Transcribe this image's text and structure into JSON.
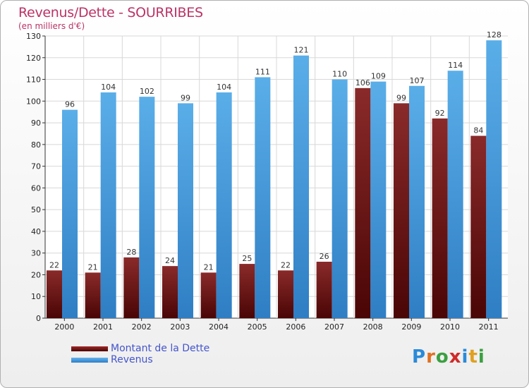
{
  "chart_data": {
    "type": "bar",
    "title": "Revenus/Dette - SOURRIBES",
    "subtitle": "(en milliers d'€)",
    "categories": [
      "2000",
      "2001",
      "2002",
      "2003",
      "2004",
      "2005",
      "2006",
      "2007",
      "2008",
      "2009",
      "2010",
      "2011"
    ],
    "series": [
      {
        "name": "Montant de la Dette",
        "color": "#7a1a1a",
        "values": [
          22,
          21,
          28,
          24,
          21,
          25,
          22,
          26,
          106,
          99,
          92,
          84
        ]
      },
      {
        "name": "Revenus",
        "color": "#4a9ee0",
        "values": [
          96,
          104,
          102,
          99,
          104,
          111,
          121,
          110,
          109,
          107,
          114,
          128
        ]
      }
    ],
    "ylim": [
      0,
      130
    ],
    "yticks": [
      0,
      10,
      20,
      30,
      40,
      50,
      60,
      70,
      80,
      90,
      100,
      110,
      120,
      130
    ],
    "grid": true,
    "legend": "bottom-left"
  },
  "logo": {
    "text": "Proxiti",
    "letters": [
      "P",
      "r",
      "o",
      "x",
      "i",
      "t",
      "i"
    ],
    "colors": [
      "#2a8ad8",
      "#e07020",
      "#3aa040",
      "#d02a2a",
      "#2a8ad8",
      "#e0a020",
      "#3aa040"
    ]
  }
}
